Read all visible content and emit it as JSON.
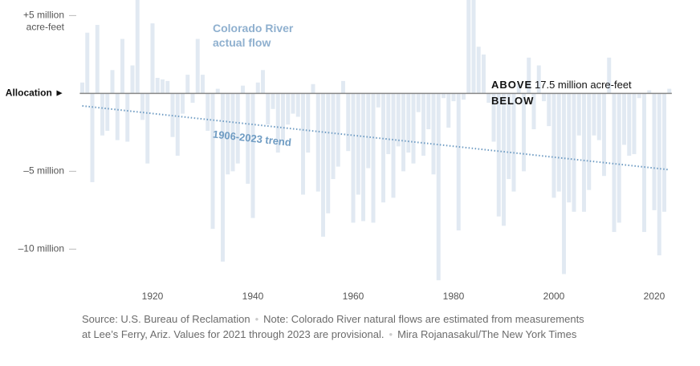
{
  "chart_data": {
    "type": "bar",
    "x": [
      1906,
      1907,
      1908,
      1909,
      1910,
      1911,
      1912,
      1913,
      1914,
      1915,
      1916,
      1917,
      1918,
      1919,
      1920,
      1921,
      1922,
      1923,
      1924,
      1925,
      1926,
      1927,
      1928,
      1929,
      1930,
      1931,
      1932,
      1933,
      1934,
      1935,
      1936,
      1937,
      1938,
      1939,
      1940,
      1941,
      1942,
      1943,
      1944,
      1945,
      1946,
      1947,
      1948,
      1949,
      1950,
      1951,
      1952,
      1953,
      1954,
      1955,
      1956,
      1957,
      1958,
      1959,
      1960,
      1961,
      1962,
      1963,
      1964,
      1965,
      1966,
      1967,
      1968,
      1969,
      1970,
      1971,
      1972,
      1973,
      1974,
      1975,
      1976,
      1977,
      1978,
      1979,
      1980,
      1981,
      1982,
      1983,
      1984,
      1985,
      1986,
      1987,
      1988,
      1989,
      1990,
      1991,
      1992,
      1993,
      1994,
      1995,
      1996,
      1997,
      1998,
      1999,
      2000,
      2001,
      2002,
      2003,
      2004,
      2005,
      2006,
      2007,
      2008,
      2009,
      2010,
      2011,
      2012,
      2013,
      2014,
      2015,
      2016,
      2017,
      2018,
      2019,
      2020,
      2021,
      2022,
      2023
    ],
    "series": [
      {
        "name": "Colorado River actual flow",
        "color": "#e1e9f2",
        "values": [
          0.7,
          3.9,
          -5.7,
          4.4,
          -2.7,
          -2.4,
          1.5,
          -3.0,
          3.5,
          -3.1,
          1.8,
          6.7,
          -1.7,
          -4.5,
          4.5,
          1.0,
          0.9,
          0.8,
          -2.8,
          -4.0,
          -1.3,
          1.2,
          -0.6,
          3.5,
          1.2,
          -2.4,
          -8.7,
          0.3,
          -10.8,
          -5.2,
          -5.0,
          -4.5,
          0.5,
          -5.8,
          -8.0,
          0.7,
          1.5,
          -2.0,
          -1.0,
          -3.8,
          -3.0,
          -2.0,
          -1.3,
          -1.5,
          -6.5,
          -3.8,
          0.6,
          -6.3,
          -9.2,
          -7.7,
          -5.5,
          -4.7,
          0.8,
          -3.7,
          -8.3,
          -6.5,
          -8.2,
          -4.8,
          -8.3,
          -0.9,
          -7.0,
          -3.9,
          -6.7,
          -3.4,
          -5.0,
          -3.8,
          -4.5,
          -1.2,
          -4.0,
          -2.3,
          -5.2,
          -12.0,
          -0.3,
          -2.2,
          -0.5,
          -8.8,
          -0.4,
          6.5,
          6.0,
          3.0,
          2.5,
          -0.6,
          -3.1,
          -7.9,
          -8.5,
          -5.5,
          -6.3,
          0.6,
          -5.0,
          2.3,
          -2.3,
          1.8,
          -0.5,
          -2.1,
          -6.7,
          -6.3,
          -11.6,
          -7.0,
          -7.6,
          -2.7,
          -7.6,
          -6.2,
          -2.7,
          -3.0,
          -5.3,
          2.3,
          -8.9,
          -8.3,
          -3.3,
          -4.0,
          -3.9,
          -0.3,
          -8.9,
          0.2,
          -7.5,
          -10.4,
          -7.6,
          0.3
        ]
      }
    ],
    "trend": {
      "name": "1906-2023 trend",
      "color": "#6f9cc3",
      "x": [
        1906,
        2023
      ],
      "values": [
        -0.8,
        -4.9
      ]
    },
    "allocation": {
      "above": "ABOVE",
      "amount": "17.5 million acre-feet",
      "below": "BELOW"
    },
    "y_unit": "acre-feet",
    "xlim": [
      1905.5,
      2023.5
    ],
    "xticks": [
      1920,
      1940,
      1960,
      1980,
      2000,
      2020
    ],
    "ylim": [
      -12,
      6
    ],
    "yticks": [
      {
        "value": 5,
        "label": "+5 million"
      },
      {
        "value": 0,
        "label": "Allocation ►"
      },
      {
        "value": -5,
        "label": "–5 million"
      },
      {
        "value": -10,
        "label": "–10 million"
      }
    ],
    "notes": [
      "Source: U.S. Bureau of Reclamation",
      "Note: Colorado River natural flows are estimated from measurements at Lee’s Ferry, Ariz. Values for 2021 through 2023 are provisional.",
      "Mira Rojanasakul/The New York Times"
    ]
  }
}
